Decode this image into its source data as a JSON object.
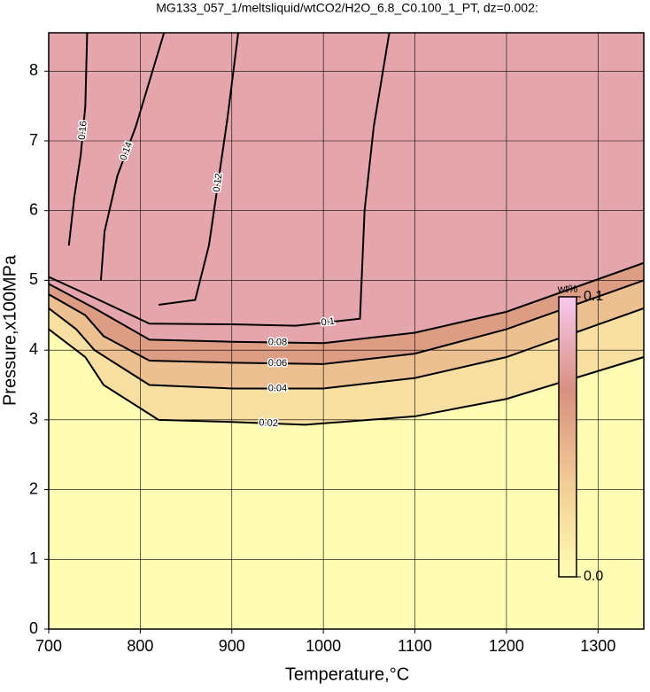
{
  "chart_data": {
    "type": "contour",
    "title": "MG133_057_1/meltsliquid/wtCO2/H2O_6.8_C0.100_1_PT, dz=0.002:",
    "xlabel": "Temperature,°C",
    "ylabel": "Pressure,x100MPa",
    "xlim": [
      700,
      1350
    ],
    "ylim": [
      0,
      8.55
    ],
    "xticks": [
      700,
      800,
      900,
      1000,
      1100,
      1200,
      1300
    ],
    "yticks": [
      0,
      1,
      2,
      3,
      4,
      5,
      6,
      7,
      8
    ],
    "grid": true,
    "contours": [
      {
        "level": 0.02,
        "x": [
          700,
          740,
          760,
          820,
          900,
          980,
          1100,
          1200,
          1350
        ],
        "y": [
          4.3,
          3.9,
          3.5,
          3.0,
          2.97,
          2.93,
          3.05,
          3.3,
          3.9
        ]
      },
      {
        "level": 0.04,
        "x": [
          700,
          730,
          750,
          810,
          900,
          1000,
          1100,
          1200,
          1350
        ],
        "y": [
          4.6,
          4.3,
          4.0,
          3.5,
          3.45,
          3.45,
          3.6,
          3.9,
          4.6
        ]
      },
      {
        "level": 0.06,
        "x": [
          700,
          740,
          760,
          810,
          900,
          1000,
          1100,
          1200,
          1350
        ],
        "y": [
          4.8,
          4.5,
          4.2,
          3.85,
          3.82,
          3.8,
          3.95,
          4.3,
          5.0
        ]
      },
      {
        "level": 0.08,
        "x": [
          700,
          750,
          810,
          900,
          1000,
          1100,
          1200,
          1350
        ],
        "y": [
          4.95,
          4.6,
          4.15,
          4.12,
          4.1,
          4.25,
          4.55,
          5.25
        ]
      },
      {
        "level": 0.1,
        "x": [
          700,
          750,
          810,
          900,
          970,
          1040,
          1045,
          1055,
          1072
        ],
        "y": [
          5.05,
          4.75,
          4.38,
          4.37,
          4.35,
          4.45,
          6.0,
          7.2,
          8.55
        ]
      },
      {
        "level": 0.12,
        "x": [
          820,
          860,
          875,
          895,
          907
        ],
        "y": [
          4.65,
          4.72,
          5.5,
          7.3,
          8.55
        ]
      },
      {
        "level": 0.14,
        "x": [
          757,
          761,
          775,
          795,
          826
        ],
        "y": [
          5.0,
          5.7,
          6.5,
          7.2,
          8.55
        ]
      },
      {
        "level": 0.16,
        "x": [
          722,
          728,
          735,
          740,
          742
        ],
        "y": [
          5.5,
          6.2,
          6.8,
          7.5,
          8.55
        ]
      }
    ],
    "colorbar": {
      "label": "wt%",
      "lim": [
        0,
        0.1
      ],
      "ticks": [
        {
          "value": 0,
          "label": "0.0"
        },
        0.1
      ],
      "colors": [
        "#fffcb4",
        "#f2cc96",
        "#d89080",
        "#f7c8ef"
      ]
    }
  }
}
